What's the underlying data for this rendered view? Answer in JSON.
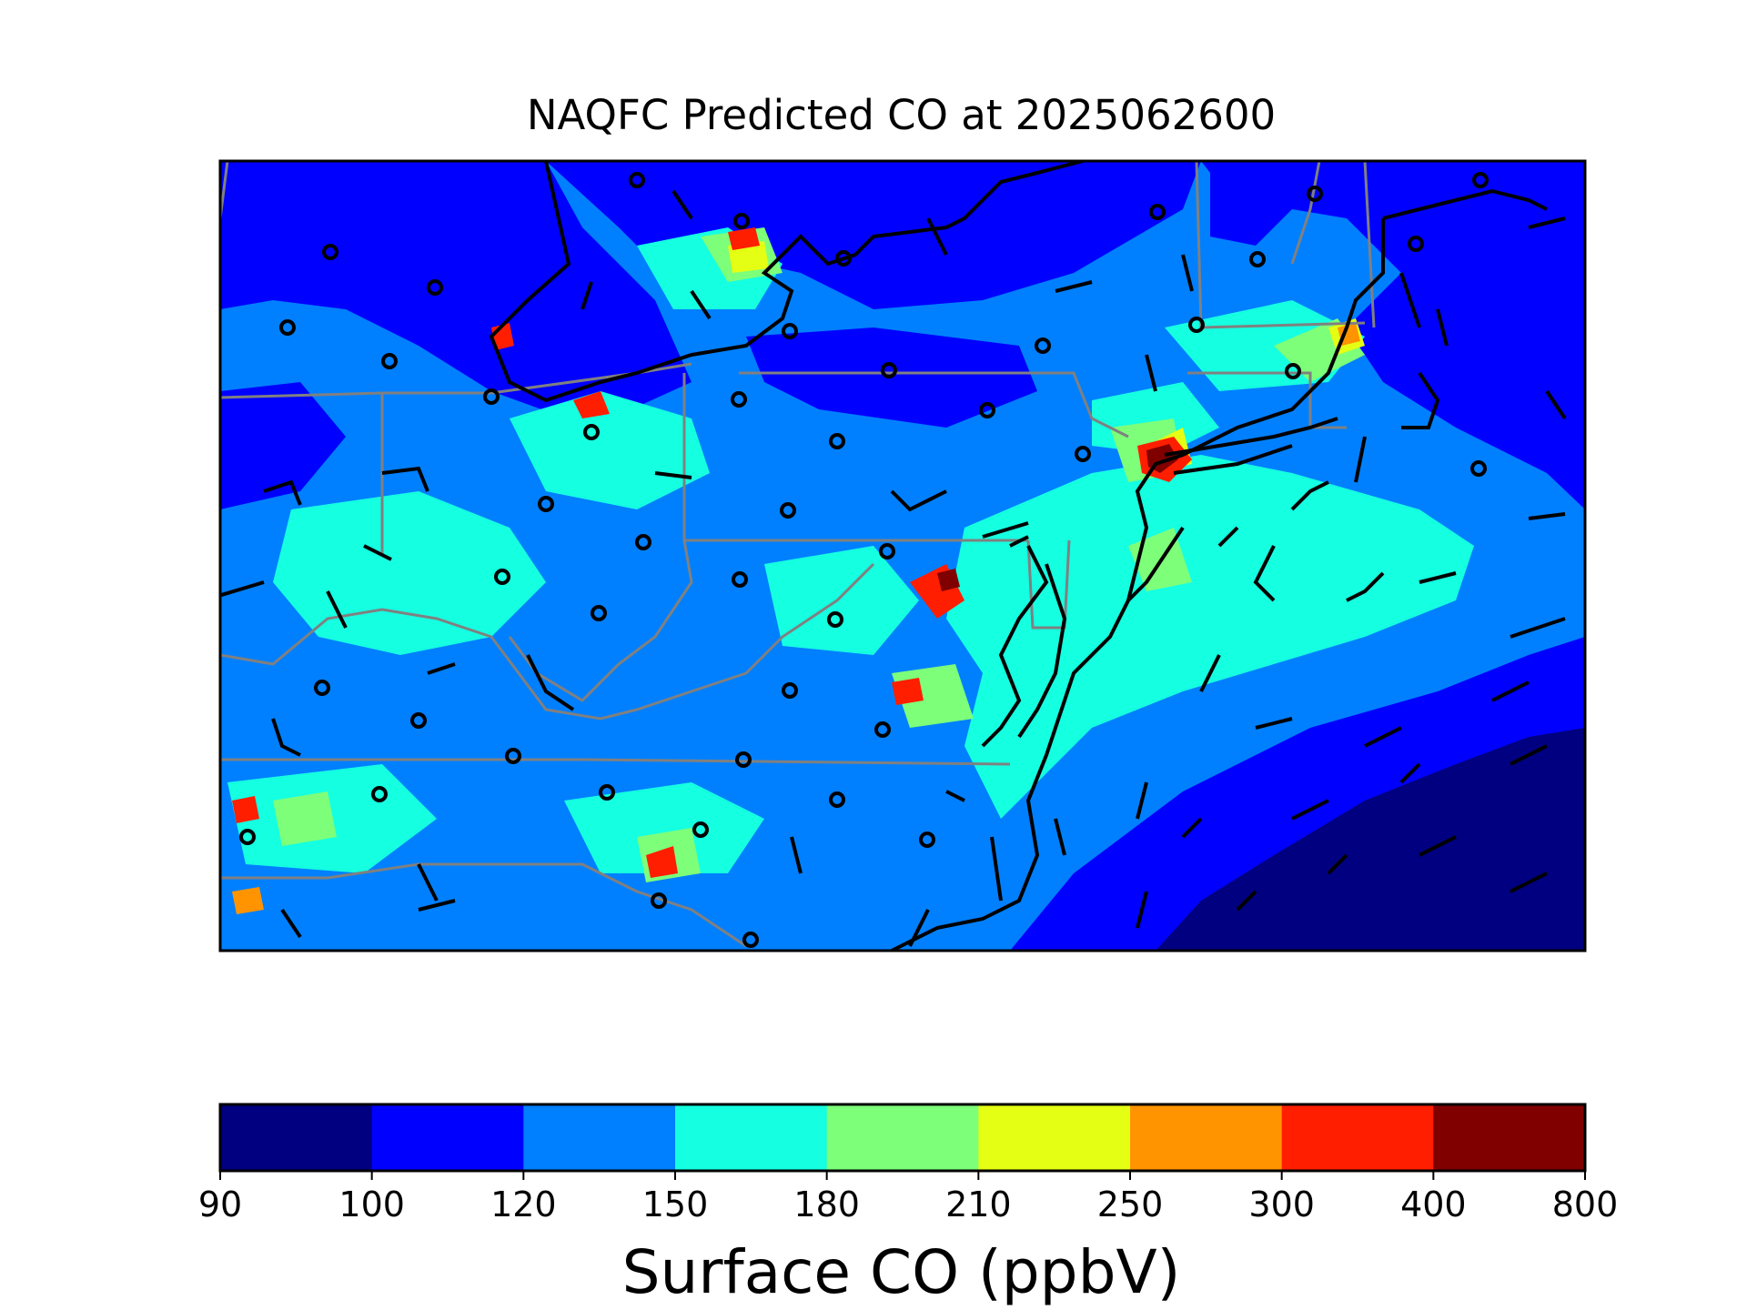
{
  "title": "NAQFC Predicted CO at 2025062600",
  "colorbar": {
    "label": "Surface CO (ppbV)",
    "ticks": [
      "90",
      "100",
      "120",
      "150",
      "180",
      "210",
      "250",
      "300",
      "400",
      "800"
    ],
    "colors": [
      "#000080",
      "#0000ff",
      "#0080ff",
      "#15ffe1",
      "#7dff7a",
      "#e4ff13",
      "#ff9400",
      "#ff1e00",
      "#800000"
    ]
  },
  "map": {
    "field_variable": "Surface CO",
    "units": "ppbV",
    "layers": [
      "co-concentration-field",
      "coastlines",
      "state-boundaries",
      "wind-barbs",
      "observation-station-markers"
    ],
    "colors": {
      "coastline": "#000000",
      "state_border": "#808080",
      "barb": "#000000",
      "station": "#000000"
    }
  }
}
